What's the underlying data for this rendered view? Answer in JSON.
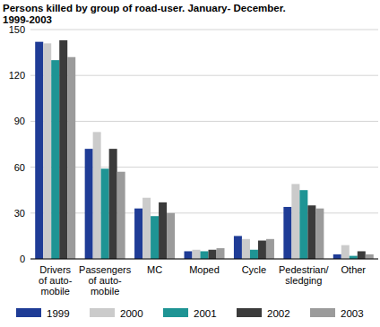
{
  "chart_data": {
    "type": "bar",
    "title": "Persons killed by group of road-user. January- December.\n1999-2003",
    "categories": [
      "Drivers\nof auto-\nmobile",
      "Passengers\nof auto-\nmobile",
      "MC",
      "Moped",
      "Cycle",
      "Pedestrian/\nsledging",
      "Other"
    ],
    "series": [
      {
        "name": "1999",
        "color": "#1f3c96",
        "values": [
          142,
          72,
          33,
          5,
          15,
          34,
          3
        ]
      },
      {
        "name": "2000",
        "color": "#cbcbcb",
        "values": [
          141,
          83,
          40,
          6,
          13,
          49,
          9
        ]
      },
      {
        "name": "2001",
        "color": "#1e9494",
        "values": [
          130,
          59,
          28,
          5,
          6,
          45,
          2
        ]
      },
      {
        "name": "2002",
        "color": "#3b3b3b",
        "values": [
          143,
          72,
          37,
          6,
          12,
          35,
          5
        ]
      },
      {
        "name": "2003",
        "color": "#9b9b9b",
        "values": [
          132,
          57,
          30,
          7,
          13,
          33,
          3
        ]
      }
    ],
    "ylim": [
      0,
      150
    ],
    "yticks": [
      0,
      30,
      60,
      90,
      120,
      150
    ],
    "grid": true,
    "legend": "bottom"
  }
}
